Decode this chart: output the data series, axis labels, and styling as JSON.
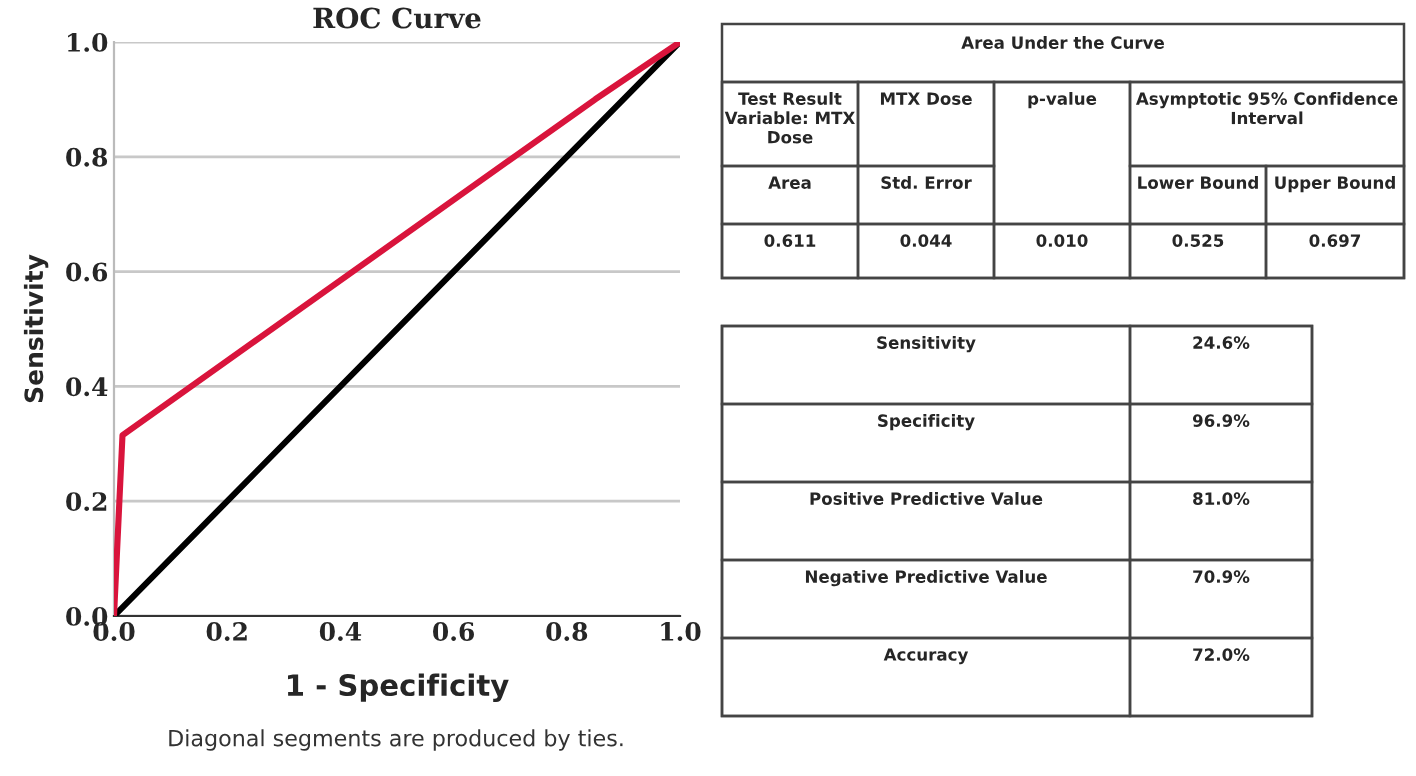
{
  "chart_data": [
    {
      "type": "line",
      "title": "ROC Curve",
      "xlabel": "1 - Specificity",
      "ylabel": "Sensitivity",
      "xlim": [
        0,
        1
      ],
      "ylim": [
        0,
        1
      ],
      "xticks": [
        {
          "value": 0,
          "label": "0.0"
        },
        {
          "value": 0.2,
          "label": "0.2"
        },
        {
          "value": 0.4,
          "label": "0.4"
        },
        {
          "value": 0.6,
          "label": "0.6"
        },
        {
          "value": 0.8,
          "label": "0.8"
        },
        {
          "value": 1,
          "label": "1.0"
        }
      ],
      "yticks": [
        {
          "value": 0,
          "label": "0.0"
        },
        {
          "value": 0.2,
          "label": "0.2"
        },
        {
          "value": 0.4,
          "label": "0.4"
        },
        {
          "value": 0.6,
          "label": "0.6"
        },
        {
          "value": 0.8,
          "label": "0.8"
        },
        {
          "value": 1,
          "label": "1.0"
        }
      ],
      "grid": "y",
      "marker": "none",
      "line_style": "solid",
      "series": [
        {
          "color": "#d9143c",
          "x": [
            0,
            0.015,
            0.85,
            1
          ],
          "values": [
            0,
            0.315,
            0.9,
            1
          ]
        },
        {
          "color": "#000000",
          "x": [
            0,
            1
          ],
          "values": [
            0,
            1
          ]
        }
      ],
      "annotations": [
        "Diagonal segments are produced by ties."
      ]
    },
    {
      "type": "other",
      "title": "Area Under the Curve",
      "annotations": [
        "Test Result Variable: MTX Dose",
        "MTX Dose",
        "p-value",
        "Asymptotic 95% Confidence Interval",
        "Area",
        "Std. Error",
        "Lower Bound",
        "Upper Bound",
        "0.611",
        "0.044",
        "0.010",
        "0.525",
        "0.697"
      ]
    },
    {
      "type": "other",
      "annotations": [
        "Sensitivity",
        "24.6%",
        "Specificity",
        "96.9%",
        "Positive Predictive Value",
        "81.0%",
        "Negative Predictive Value",
        "70.9%",
        "Accuracy",
        "72.0%"
      ]
    }
  ]
}
